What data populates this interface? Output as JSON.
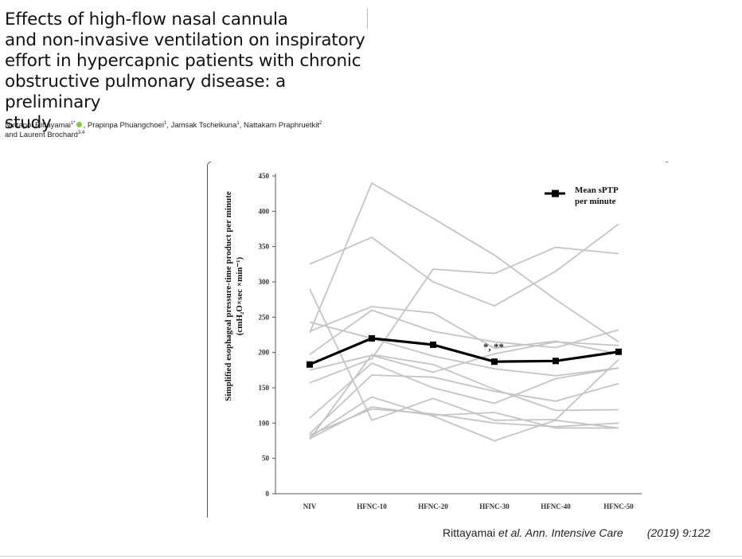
{
  "paper": {
    "title_lines": [
      "Effects of high-flow nasal cannula",
      "and non-invasive ventilation on inspiratory",
      "effort in hypercapnic patients with chronic",
      "obstructive pulmonary disease: a preliminary",
      "study"
    ],
    "authors": [
      {
        "name": "Nuttapol Rittayamai",
        "sup": "1*",
        "orcid": true,
        "sep": ", "
      },
      {
        "name": "Prapinpa Phuangchoei",
        "sup": "1",
        "sep": ", "
      },
      {
        "name": "Jamsak Tscheikuna",
        "sup": "1",
        "sep": ", "
      },
      {
        "name": "Nattakarn Praphruetkit",
        "sup": "2",
        "sep": "",
        "break_after": true
      },
      {
        "name": "and Laurent Brochard",
        "sup": "3,4",
        "sep": ""
      }
    ],
    "citation": {
      "prefix": "Rittayamai ",
      "etal": "et al. Ann. Intensive Care",
      "year_vol": "(2019) 9:122"
    }
  },
  "chart_data": {
    "type": "line",
    "ylabel_line1": "Simplified esophageal pressure-time product per minute",
    "ylabel_line2": "(cmH₂O×sec ×min⁻¹)",
    "ylim": [
      0,
      450
    ],
    "yticks": [
      0,
      50,
      100,
      150,
      200,
      250,
      300,
      350,
      400,
      450
    ],
    "categories": [
      "NIV",
      "HFNC-10",
      "HFNC-20",
      "HFNC-30",
      "HFNC-40",
      "HFNC-50"
    ],
    "legend": {
      "label_line1": "Mean sPTP",
      "label_line2": "per minute",
      "placement": "top-right"
    },
    "annotation": "*, **",
    "mean_series": {
      "name": "Mean sPTP per minute",
      "values": [
        183,
        220,
        211,
        187,
        188,
        201
      ],
      "color": "#000000"
    },
    "individual_series_color": "#c4c4c4",
    "series": [
      {
        "values": [
          325,
          363,
          300,
          266,
          315,
          382
        ]
      },
      {
        "values": [
          228,
          440,
          390,
          338,
          275,
          215
        ]
      },
      {
        "values": [
          290,
          104,
          135,
          104,
          105,
          190
        ]
      },
      {
        "values": [
          243,
          220,
          195,
          177,
          167,
          178
        ]
      },
      {
        "values": [
          230,
          265,
          256,
          206,
          216,
          198
        ]
      },
      {
        "values": [
          197,
          260,
          230,
          215,
          207,
          232
        ]
      },
      {
        "values": [
          175,
          196,
          172,
          198,
          215,
          210
        ]
      },
      {
        "values": [
          157,
          191,
          318,
          312,
          349,
          340
        ]
      },
      {
        "values": [
          107,
          185,
          150,
          128,
          163,
          178
        ]
      },
      {
        "values": [
          85,
          168,
          165,
          145,
          131,
          156
        ]
      },
      {
        "values": [
          80,
          137,
          110,
          75,
          104,
          93
        ]
      },
      {
        "values": [
          78,
          123,
          111,
          115,
          93,
          93
        ]
      },
      {
        "values": [
          83,
          120,
          113,
          100,
          95,
          100
        ]
      },
      {
        "values": [
          77,
          197,
          183,
          148,
          118,
          119
        ]
      }
    ]
  }
}
